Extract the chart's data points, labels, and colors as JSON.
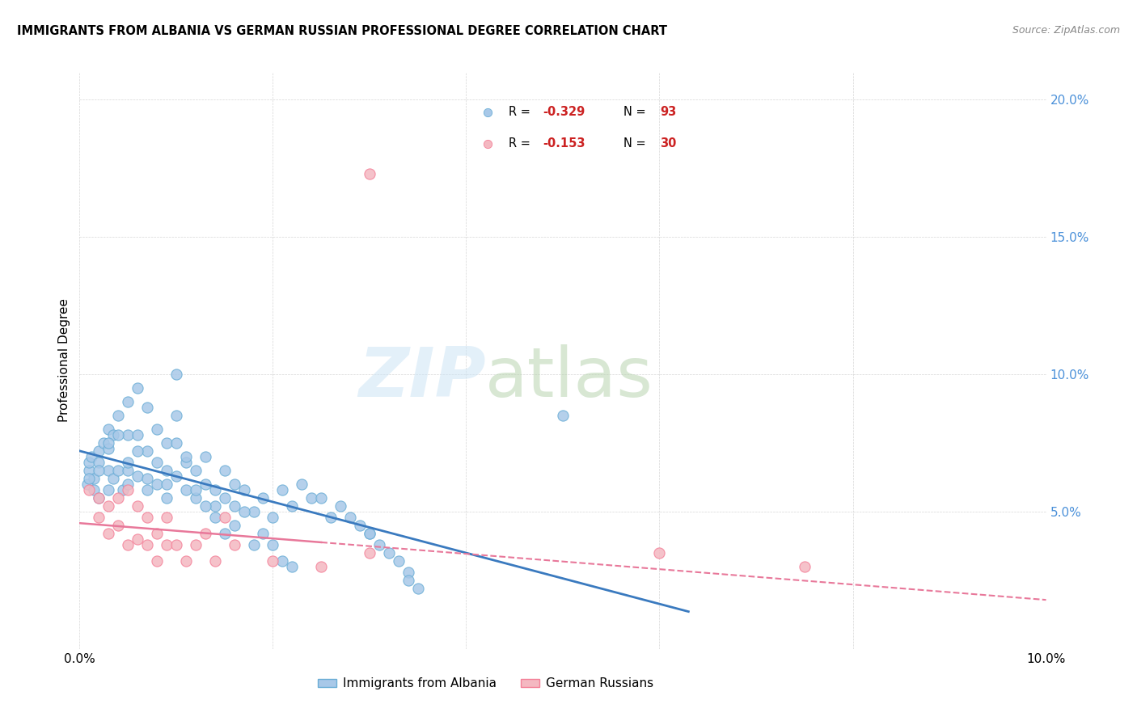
{
  "title": "IMMIGRANTS FROM ALBANIA VS GERMAN RUSSIAN PROFESSIONAL DEGREE CORRELATION CHART",
  "source": "Source: ZipAtlas.com",
  "ylabel": "Professional Degree",
  "xlim": [
    0.0,
    0.1
  ],
  "ylim": [
    0.0,
    0.21
  ],
  "albania_color": "#a8c8e8",
  "albania_edge": "#6baed6",
  "german_color": "#f4b8c1",
  "german_edge": "#f48098",
  "albania_line_color": "#3a7abf",
  "german_line_color": "#e8789a",
  "albania_R": -0.329,
  "albania_N": 93,
  "german_R": -0.153,
  "german_N": 30,
  "legend_label_albania": "Immigrants from Albania",
  "legend_label_german": "German Russians",
  "albania_x": [
    0.0008,
    0.001,
    0.001,
    0.0012,
    0.0015,
    0.0015,
    0.002,
    0.002,
    0.002,
    0.0025,
    0.003,
    0.003,
    0.003,
    0.003,
    0.0035,
    0.0035,
    0.004,
    0.004,
    0.0045,
    0.005,
    0.005,
    0.005,
    0.005,
    0.006,
    0.006,
    0.006,
    0.007,
    0.007,
    0.007,
    0.008,
    0.008,
    0.009,
    0.009,
    0.009,
    0.01,
    0.01,
    0.01,
    0.011,
    0.011,
    0.012,
    0.012,
    0.013,
    0.013,
    0.014,
    0.014,
    0.015,
    0.015,
    0.016,
    0.016,
    0.017,
    0.018,
    0.019,
    0.02,
    0.021,
    0.022,
    0.023,
    0.024,
    0.025,
    0.026,
    0.027,
    0.028,
    0.029,
    0.03,
    0.001,
    0.002,
    0.003,
    0.004,
    0.005,
    0.006,
    0.007,
    0.008,
    0.009,
    0.01,
    0.011,
    0.012,
    0.013,
    0.014,
    0.015,
    0.016,
    0.017,
    0.018,
    0.019,
    0.02,
    0.021,
    0.022,
    0.05,
    0.03,
    0.031,
    0.032,
    0.033,
    0.034,
    0.034,
    0.035
  ],
  "albania_y": [
    0.06,
    0.065,
    0.068,
    0.07,
    0.062,
    0.058,
    0.072,
    0.068,
    0.055,
    0.075,
    0.08,
    0.073,
    0.065,
    0.058,
    0.078,
    0.062,
    0.085,
    0.065,
    0.058,
    0.09,
    0.078,
    0.065,
    0.06,
    0.095,
    0.078,
    0.063,
    0.088,
    0.072,
    0.058,
    0.08,
    0.06,
    0.075,
    0.06,
    0.055,
    0.1,
    0.085,
    0.063,
    0.068,
    0.058,
    0.065,
    0.055,
    0.07,
    0.06,
    0.058,
    0.052,
    0.065,
    0.055,
    0.06,
    0.052,
    0.058,
    0.05,
    0.055,
    0.048,
    0.058,
    0.052,
    0.06,
    0.055,
    0.055,
    0.048,
    0.052,
    0.048,
    0.045,
    0.042,
    0.062,
    0.065,
    0.075,
    0.078,
    0.068,
    0.072,
    0.062,
    0.068,
    0.065,
    0.075,
    0.07,
    0.058,
    0.052,
    0.048,
    0.042,
    0.045,
    0.05,
    0.038,
    0.042,
    0.038,
    0.032,
    0.03,
    0.085,
    0.042,
    0.038,
    0.035,
    0.032,
    0.028,
    0.025,
    0.022
  ],
  "german_x": [
    0.001,
    0.002,
    0.002,
    0.003,
    0.003,
    0.004,
    0.004,
    0.005,
    0.005,
    0.006,
    0.006,
    0.007,
    0.007,
    0.008,
    0.008,
    0.009,
    0.009,
    0.01,
    0.011,
    0.012,
    0.013,
    0.014,
    0.015,
    0.016,
    0.02,
    0.025,
    0.03,
    0.06,
    0.075,
    0.03
  ],
  "german_y": [
    0.058,
    0.055,
    0.048,
    0.052,
    0.042,
    0.055,
    0.045,
    0.058,
    0.038,
    0.052,
    0.04,
    0.048,
    0.038,
    0.042,
    0.032,
    0.048,
    0.038,
    0.038,
    0.032,
    0.038,
    0.042,
    0.032,
    0.048,
    0.038,
    0.032,
    0.03,
    0.035,
    0.035,
    0.03,
    0.173
  ]
}
